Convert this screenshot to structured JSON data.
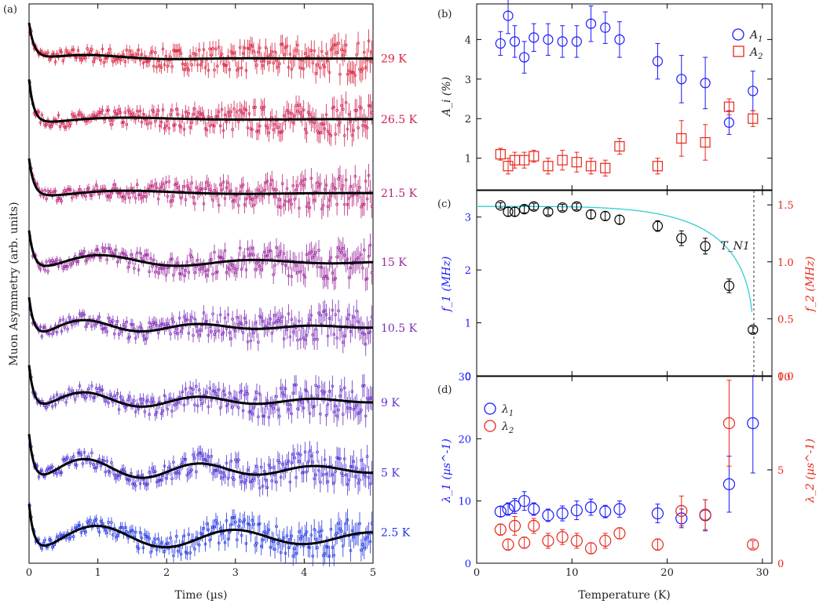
{
  "figure": {
    "panels": {
      "a": {
        "label": "(a)"
      },
      "b": {
        "label": "(b)"
      },
      "c": {
        "label": "(c)"
      },
      "d": {
        "label": "(d)"
      }
    }
  },
  "chart_data": [
    {
      "panel": "(a)",
      "type": "line",
      "xlabel": "Time (µs)",
      "ylabel": "Muon Asymmetry (arb. units)",
      "xlim": [
        0,
        5
      ],
      "xticks": [
        "0",
        "1",
        "2",
        "3",
        "4",
        "5"
      ],
      "y_ticks_shown": false,
      "plot_style": "error-bar data points with black model-fit line; curves vertically offset by temperature",
      "series": [
        {
          "name": "29 K",
          "color": "#d8213c",
          "initial_drop": 3.2,
          "osc_freq": 0.45,
          "osc_amp": 0.8,
          "damp": 1.2,
          "baseline": -1.1
        },
        {
          "name": "26.5 K",
          "color": "#cf2152",
          "initial_drop": 4.3,
          "osc_freq": 0.3,
          "osc_amp": 0.6,
          "damp": 0.9,
          "baseline": -0.2
        },
        {
          "name": "21.5 K",
          "color": "#b8247a",
          "initial_drop": 3.6,
          "osc_freq": 0.3,
          "osc_amp": 0.8,
          "damp": 0.8,
          "baseline": -0.6
        },
        {
          "name": "15 K",
          "color": "#992aa0",
          "initial_drop": 3.7,
          "osc_freq": 0.45,
          "osc_amp": 1.1,
          "damp": 0.5,
          "baseline": -0.5
        },
        {
          "name": "10.5 K",
          "color": "#7e2fb8",
          "initial_drop": 3.9,
          "osc_freq": 0.6,
          "osc_amp": 1.0,
          "damp": 0.5,
          "baseline": 0.0
        },
        {
          "name": "9 K",
          "color": "#6531c8",
          "initial_drop": 4.2,
          "osc_freq": 0.6,
          "osc_amp": 1.1,
          "damp": 0.4,
          "baseline": -0.4
        },
        {
          "name": "5 K",
          "color": "#4a33d4",
          "initial_drop": 4.5,
          "osc_freq": 0.6,
          "osc_amp": 1.3,
          "damp": 0.3,
          "baseline": -0.3
        },
        {
          "name": "2.5 K",
          "color": "#2236e2",
          "initial_drop": 4.6,
          "osc_freq": 0.5,
          "osc_amp": 1.4,
          "damp": 0.2,
          "baseline": -0.1
        }
      ]
    },
    {
      "panel": "(b)",
      "type": "scatter",
      "xlim": [
        0,
        31
      ],
      "ylabel": "A_i (%)",
      "ylim": [
        0.2,
        4.9
      ],
      "yticks": [
        "1",
        "2",
        "3",
        "4"
      ],
      "legend_position": "top-right",
      "series": [
        {
          "name": "A_1",
          "color": "#1a1aff",
          "marker": "circle",
          "x": [
            2.5,
            3.3,
            4.0,
            5.0,
            6.0,
            7.5,
            9.0,
            10.5,
            12.0,
            13.5,
            15.0,
            19.0,
            21.5,
            24.0,
            26.5,
            29.0
          ],
          "y": [
            3.9,
            4.6,
            3.95,
            3.55,
            4.05,
            4.0,
            3.95,
            3.95,
            4.4,
            4.3,
            4.0,
            3.45,
            3.0,
            2.9,
            1.9,
            2.7
          ],
          "err": [
            0.3,
            0.45,
            0.4,
            0.4,
            0.35,
            0.4,
            0.4,
            0.4,
            0.45,
            0.4,
            0.45,
            0.45,
            0.6,
            0.65,
            0.3,
            0.5
          ]
        },
        {
          "name": "A_2",
          "color": "#e8261a",
          "marker": "square",
          "x": [
            2.5,
            3.3,
            4.0,
            5.0,
            6.0,
            7.5,
            9.0,
            10.5,
            12.0,
            13.5,
            15.0,
            19.0,
            21.5,
            24.0,
            26.5,
            29.0
          ],
          "y": [
            1.1,
            0.8,
            0.95,
            0.95,
            1.05,
            0.8,
            0.95,
            0.9,
            0.8,
            0.75,
            1.3,
            0.8,
            1.5,
            1.4,
            2.3,
            2.0
          ],
          "err": [
            0.15,
            0.2,
            0.2,
            0.2,
            0.15,
            0.2,
            0.25,
            0.25,
            0.2,
            0.2,
            0.2,
            0.2,
            0.45,
            0.45,
            0.2,
            0.2
          ]
        }
      ]
    },
    {
      "panel": "(c)",
      "type": "scatter",
      "xlim": [
        0,
        31
      ],
      "ylabel_left": "f_1 (MHz)",
      "ylim_left": [
        0,
        3.5
      ],
      "yticks_left": [
        "0",
        "1",
        "2",
        "3"
      ],
      "ylabel_right": "f_2 (MHz)",
      "ylim_right": [
        0,
        1.625
      ],
      "yticks_right": [
        "0.0",
        "0.5",
        "1.0",
        "1.5"
      ],
      "annotation": "T_N1",
      "tn_line_x": 29.1,
      "fit_color": "#2fd0d6",
      "series": [
        {
          "name": "f",
          "color": "#000000",
          "marker": "circle",
          "x": [
            2.5,
            3.3,
            4.0,
            5.0,
            6.0,
            7.5,
            9.0,
            10.5,
            12.0,
            13.5,
            15.0,
            19.0,
            21.5,
            24.0,
            26.5,
            29.0
          ],
          "y": [
            3.22,
            3.1,
            3.1,
            3.15,
            3.2,
            3.1,
            3.18,
            3.2,
            3.05,
            3.02,
            2.95,
            2.83,
            2.6,
            2.45,
            1.7,
            0.87
          ],
          "err": [
            0.05,
            0.08,
            0.08,
            0.07,
            0.06,
            0.06,
            0.06,
            0.06,
            0.08,
            0.08,
            0.08,
            0.1,
            0.14,
            0.15,
            0.13,
            0.06
          ]
        }
      ]
    },
    {
      "panel": "(d)",
      "type": "scatter",
      "xlabel": "Temperature (K)",
      "xlim": [
        0,
        31
      ],
      "xticks": [
        "0",
        "10",
        "20",
        "30"
      ],
      "ylabel_left": "λ_1 (µs^-1)",
      "ylim_left": [
        0,
        30
      ],
      "yticks_left": [
        "0",
        "10",
        "20",
        "30"
      ],
      "ylabel_right": "λ_2 (µs^-1)",
      "ylim_right": [
        0,
        10
      ],
      "yticks_right": [
        "0",
        "5",
        "10"
      ],
      "legend_position": "top-left",
      "series": [
        {
          "name": "λ_1",
          "color": "#1a1aff",
          "marker": "circle",
          "axis": "left",
          "x": [
            2.5,
            3.3,
            4.0,
            5.0,
            6.0,
            7.5,
            9.0,
            10.5,
            12.0,
            13.5,
            15.0,
            19.0,
            21.5,
            24.0,
            26.5,
            29.0
          ],
          "y": [
            8.3,
            8.7,
            9.2,
            10.0,
            8.7,
            7.7,
            8.0,
            8.5,
            9.0,
            8.3,
            8.7,
            8.0,
            7.2,
            7.7,
            12.7,
            22.5
          ],
          "err": [
            0.8,
            1.0,
            1.2,
            1.5,
            1.0,
            1.0,
            1.2,
            1.5,
            1.3,
            1.0,
            1.3,
            1.5,
            1.5,
            2.5,
            4.5,
            8.0
          ]
        },
        {
          "name": "λ_2",
          "color": "#e8261a",
          "marker": "circle",
          "axis": "right",
          "x": [
            2.5,
            3.3,
            4.0,
            5.0,
            6.0,
            7.5,
            9.0,
            10.5,
            12.0,
            13.5,
            15.0,
            19.0,
            21.5,
            24.0,
            26.5,
            29.0
          ],
          "y": [
            1.8,
            1.0,
            2.0,
            1.1,
            2.0,
            1.2,
            1.4,
            1.2,
            0.8,
            1.2,
            1.6,
            1.0,
            2.8,
            2.6,
            7.5,
            1.0
          ],
          "err": [
            0.3,
            0.3,
            0.5,
            0.3,
            0.4,
            0.4,
            0.4,
            0.4,
            0.3,
            0.4,
            0.3,
            0.3,
            0.8,
            0.8,
            2.3,
            0.2
          ]
        }
      ]
    }
  ]
}
